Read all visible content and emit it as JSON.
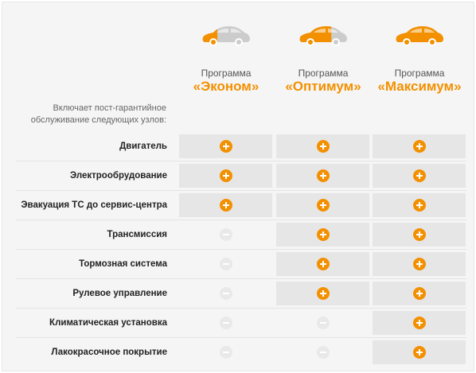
{
  "colors": {
    "accent": "#f39000",
    "car_gray": "#cccccc",
    "cell_bg": "#e6e6e6"
  },
  "icons": {
    "car": "car-icon",
    "included": "plus-circle-icon",
    "excluded": "minus-circle-icon"
  },
  "plans": [
    {
      "prefix": "Программа",
      "name": "«Эконом»",
      "car_fill": 0.33
    },
    {
      "prefix": "Программа",
      "name": "«Оптимум»",
      "car_fill": 0.66
    },
    {
      "prefix": "Программа",
      "name": "«Максимум»",
      "car_fill": 1.0
    }
  ],
  "intro": {
    "line1": "Включает пост-гарантийное",
    "line2": "обслуживание следующих узлов:"
  },
  "rows": [
    {
      "label": "Двигатель",
      "included": [
        true,
        true,
        true
      ]
    },
    {
      "label": "Электрообрудование",
      "included": [
        true,
        true,
        true
      ]
    },
    {
      "label": "Эвакуация ТС до сервис-центра",
      "included": [
        true,
        true,
        true
      ]
    },
    {
      "label": "Трансмиссия",
      "included": [
        false,
        true,
        true
      ]
    },
    {
      "label": "Тормозная система",
      "included": [
        false,
        true,
        true
      ]
    },
    {
      "label": "Рулевое управление",
      "included": [
        false,
        true,
        true
      ]
    },
    {
      "label": "Климатическая установка",
      "included": [
        false,
        false,
        true
      ]
    },
    {
      "label": "Лакокрасочное покрытие",
      "included": [
        false,
        false,
        true
      ]
    }
  ]
}
